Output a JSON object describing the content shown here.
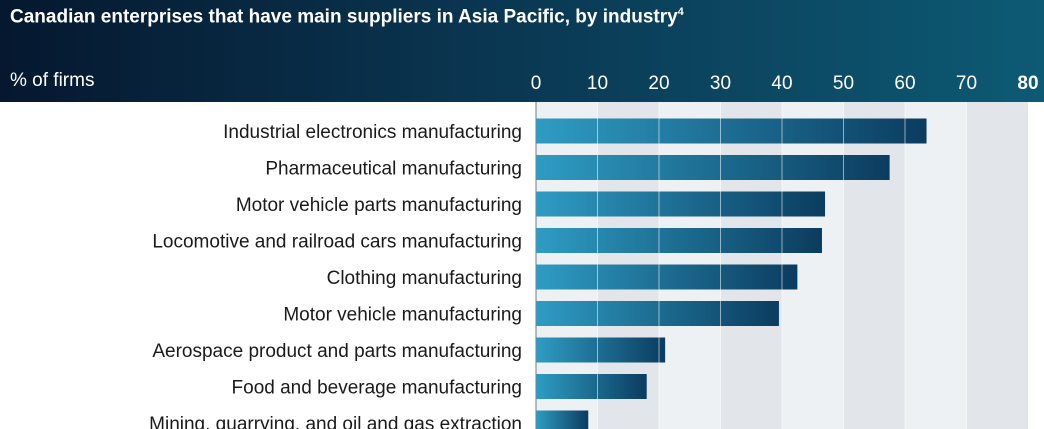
{
  "title": "Canadian enterprises that have main suppliers in Asia Pacific, by industry",
  "title_footnote": "4",
  "unit_label": "% of firms",
  "colors": {
    "header_dark": "#05182f",
    "header_light": "#0d5a74",
    "bar_light": "#2f9cc3",
    "bar_dark": "#0b3c5f",
    "band_light": "#eef1f4",
    "band_dark": "#e2e6ea"
  },
  "chart_data": {
    "type": "bar",
    "orientation": "horizontal",
    "title": "Canadian enterprises that have main suppliers in Asia Pacific, by industry",
    "xlabel": "% of firms",
    "xlim": [
      0,
      80
    ],
    "xticks": [
      0,
      10,
      20,
      30,
      40,
      50,
      60,
      70,
      80
    ],
    "bold_tick": 80,
    "grid": true,
    "categories": [
      "Industrial electronics manufacturing",
      "Pharmaceutical manufacturing",
      "Motor vehicle parts manufacturing",
      "Locomotive and railroad cars manufacturing",
      "Clothing manufacturing",
      "Motor vehicle manufacturing",
      "Aerospace product and parts manufacturing",
      "Food and beverage manufacturing",
      "Mining, quarrying, and oil and gas extraction"
    ],
    "values": [
      63.5,
      57.5,
      47,
      46.5,
      42.5,
      39.5,
      21,
      18,
      8.5
    ]
  }
}
